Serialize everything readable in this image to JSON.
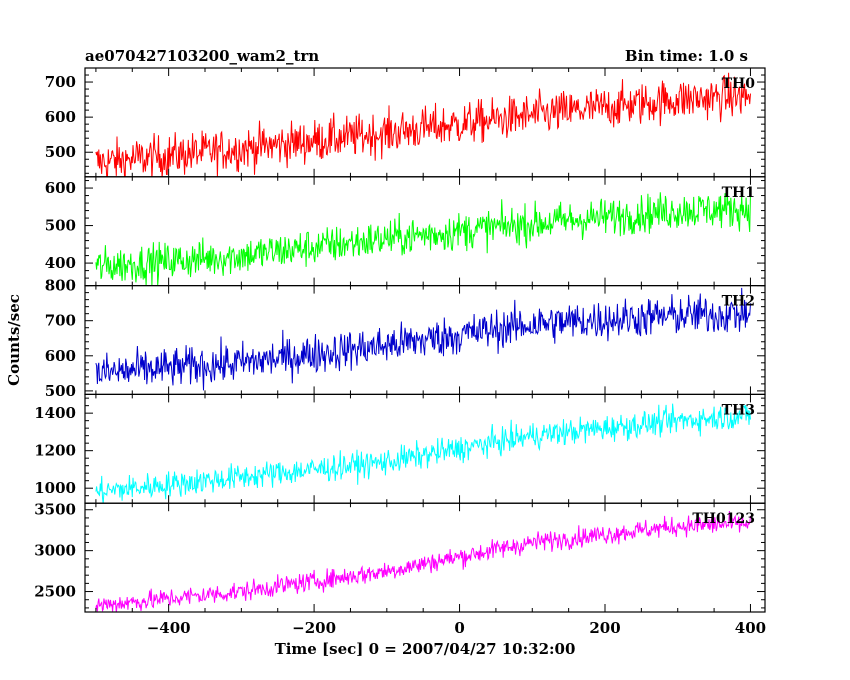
{
  "header": {
    "title": "ae070427103200_wam2_trn",
    "bin_time": "Bin time: 1.0 s"
  },
  "chart_data": {
    "type": "line",
    "xlabel": "Time [sec] 0 = 2007/04/27 10:32:00",
    "ylabel": "Counts/sec",
    "xlim": [
      -515,
      420
    ],
    "x_ticks": [
      -400,
      -200,
      0,
      200,
      400
    ],
    "x_tick_labels": [
      "−400",
      "−200",
      "0",
      "200",
      "400"
    ],
    "x_sampling": {
      "start": -500,
      "end": 400,
      "step": 1
    },
    "panels": [
      {
        "name": "TH0",
        "color": "#ff0000",
        "ylim": [
          430,
          740
        ],
        "y_ticks": [
          500,
          600,
          700
        ],
        "trend": {
          "x": [
            -500,
            -300,
            -100,
            100,
            300,
            400
          ],
          "y": [
            470,
            510,
            555,
            605,
            650,
            660
          ]
        },
        "noise": 30
      },
      {
        "name": "TH1",
        "color": "#00ff00",
        "ylim": [
          340,
          630
        ],
        "y_ticks": [
          400,
          500,
          600
        ],
        "trend": {
          "x": [
            -500,
            -300,
            -100,
            100,
            300,
            400
          ],
          "y": [
            390,
            420,
            465,
            505,
            540,
            545
          ]
        },
        "noise": 25
      },
      {
        "name": "TH2",
        "color": "#0000cc",
        "ylim": [
          490,
          800
        ],
        "y_ticks": [
          500,
          600,
          700,
          800
        ],
        "trend": {
          "x": [
            -500,
            -300,
            -100,
            100,
            300,
            400
          ],
          "y": [
            550,
            580,
            630,
            690,
            715,
            720
          ]
        },
        "noise": 28
      },
      {
        "name": "TH3",
        "color": "#00ffff",
        "ylim": [
          920,
          1500
        ],
        "y_ticks": [
          1000,
          1200,
          1400
        ],
        "trend": {
          "x": [
            -500,
            -300,
            -100,
            100,
            300,
            400
          ],
          "y": [
            980,
            1060,
            1140,
            1280,
            1360,
            1390
          ]
        },
        "noise": 35
      },
      {
        "name": "TH0123",
        "color": "#ff00ff",
        "ylim": [
          2250,
          3580
        ],
        "y_ticks": [
          2500,
          3000,
          3500
        ],
        "trend": {
          "x": [
            -500,
            -300,
            -100,
            100,
            300,
            400
          ],
          "y": [
            2330,
            2500,
            2750,
            3100,
            3300,
            3330
          ]
        },
        "noise": 60
      }
    ]
  }
}
